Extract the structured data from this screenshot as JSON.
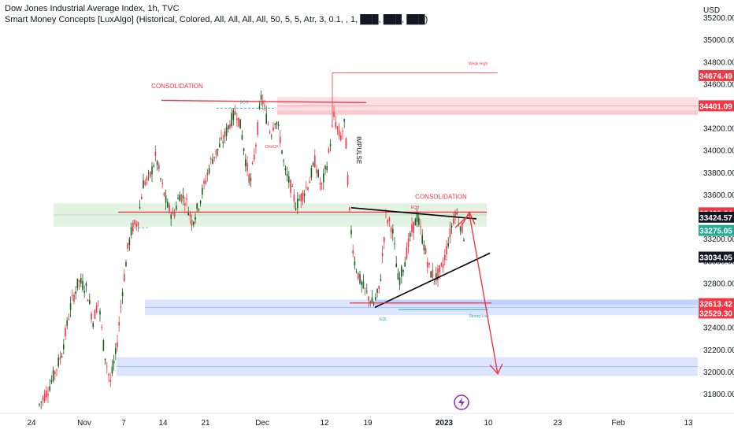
{
  "header": {
    "title": "Dow Jones Industrial Average Index, 1h, TVC",
    "indicator": "Smart Money Concepts [LuxAlgo] (Historical, Colored, All, All, All, All, 50, 5, 5, Atr, 3, 0.1, , 1, ███, ███, ███)"
  },
  "chart_data": {
    "type": "candlestick",
    "y_unit": "USD",
    "ylim": [
      31650,
      35420
    ],
    "y_ticks": [
      31800,
      32000,
      32200,
      32400,
      32600,
      32800,
      33000,
      33200,
      33400,
      33600,
      33800,
      34000,
      34200,
      34400,
      34600,
      34800,
      35000,
      35200
    ],
    "x_ticks": [
      "24",
      "Nov",
      "7",
      "14",
      "21",
      "Dec",
      "12",
      "19",
      "2023",
      "10",
      "23",
      "Feb",
      "13"
    ],
    "price_labels": [
      {
        "value": "34674.49",
        "color": "#f23645"
      },
      {
        "value": "34401.09",
        "color": "#f23645"
      },
      {
        "value": "33433.64",
        "color": "#f23645"
      },
      {
        "value": "33424.57",
        "color": "#131722"
      },
      {
        "value": "33275.05",
        "color": "#22ab94"
      },
      {
        "value": "33034.05",
        "color": "#131722"
      },
      {
        "value": "32613.42",
        "color": "#f23645"
      },
      {
        "value": "32529.30",
        "color": "#f23645"
      }
    ],
    "zones": [
      {
        "type": "supply",
        "from": 34320,
        "to": 34480,
        "color": "#f23645"
      },
      {
        "type": "demand",
        "from": 33310,
        "to": 33520,
        "color": "#4caf50"
      },
      {
        "type": "demand",
        "from": 32510,
        "to": 32650,
        "color": "#2962ff"
      },
      {
        "type": "demand",
        "from": 31960,
        "to": 32130,
        "color": "#2962ff"
      }
    ],
    "annotations": [
      "CONSOLIDATION",
      "CONSOLIDATION",
      "IMPULSE",
      "Weak High",
      "Strong Low",
      "BOS",
      "CHoCH",
      "EQL",
      "EQH"
    ],
    "events_icon": "lightning-icon"
  }
}
